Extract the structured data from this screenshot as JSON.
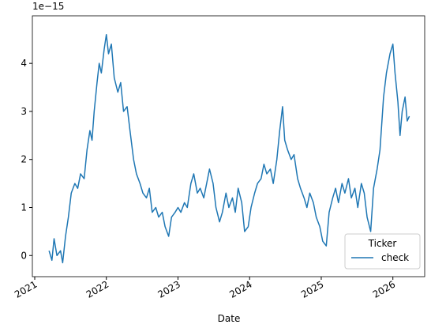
{
  "chart_data": {
    "type": "line",
    "y_offset_label": "1e−15",
    "x_label": "Date",
    "x": [
      2021.2,
      2021.24,
      2021.27,
      2021.31,
      2021.36,
      2021.39,
      2021.43,
      2021.47,
      2021.51,
      2021.56,
      2021.6,
      2021.64,
      2021.69,
      2021.73,
      2021.77,
      2021.8,
      2021.83,
      2021.87,
      2021.9,
      2021.93,
      2021.97,
      2022.0,
      2022.03,
      2022.07,
      2022.11,
      2022.16,
      2022.2,
      2022.24,
      2022.29,
      2022.33,
      2022.38,
      2022.42,
      2022.47,
      2022.51,
      2022.56,
      2022.6,
      2022.64,
      2022.69,
      2022.73,
      2022.78,
      2022.82,
      2022.87,
      2022.91,
      2022.96,
      2023.0,
      2023.04,
      2023.09,
      2023.13,
      2023.18,
      2023.22,
      2023.27,
      2023.31,
      2023.36,
      2023.4,
      2023.44,
      2023.49,
      2023.53,
      2023.58,
      2023.62,
      2023.67,
      2023.71,
      2023.76,
      2023.8,
      2023.84,
      2023.89,
      2023.93,
      2023.98,
      2024.02,
      2024.07,
      2024.11,
      2024.16,
      2024.2,
      2024.24,
      2024.29,
      2024.33,
      2024.38,
      2024.42,
      2024.46,
      2024.49,
      2024.53,
      2024.58,
      2024.62,
      2024.67,
      2024.71,
      2024.76,
      2024.8,
      2024.84,
      2024.89,
      2024.93,
      2024.98,
      2025.02,
      2025.07,
      2025.11,
      2025.16,
      2025.2,
      2025.24,
      2025.29,
      2025.33,
      2025.38,
      2025.42,
      2025.47,
      2025.51,
      2025.56,
      2025.6,
      2025.64,
      2025.69,
      2025.73,
      2025.78,
      2025.82,
      2025.87,
      2025.91,
      2025.96,
      2026.0,
      2026.03,
      2026.07,
      2026.1,
      2026.13,
      2026.17,
      2026.2,
      2026.23
    ],
    "series": [
      {
        "name": "check",
        "color": "#1f77b4",
        "values": [
          0.1,
          -0.1,
          0.35,
          0.0,
          0.1,
          -0.15,
          0.4,
          0.8,
          1.3,
          1.5,
          1.4,
          1.7,
          1.6,
          2.2,
          2.6,
          2.4,
          3.0,
          3.6,
          4.0,
          3.8,
          4.3,
          4.6,
          4.2,
          4.4,
          3.7,
          3.4,
          3.6,
          3.0,
          3.1,
          2.6,
          2.0,
          1.7,
          1.5,
          1.3,
          1.2,
          1.4,
          0.9,
          1.0,
          0.8,
          0.9,
          0.6,
          0.4,
          0.8,
          0.9,
          1.0,
          0.9,
          1.1,
          1.0,
          1.5,
          1.7,
          1.3,
          1.4,
          1.2,
          1.5,
          1.8,
          1.5,
          1.0,
          0.7,
          0.9,
          1.3,
          1.0,
          1.2,
          0.9,
          1.4,
          1.1,
          0.5,
          0.6,
          1.0,
          1.3,
          1.5,
          1.6,
          1.9,
          1.7,
          1.8,
          1.5,
          2.0,
          2.6,
          3.1,
          2.4,
          2.2,
          2.0,
          2.1,
          1.6,
          1.4,
          1.2,
          1.0,
          1.3,
          1.1,
          0.8,
          0.6,
          0.3,
          0.2,
          0.9,
          1.2,
          1.4,
          1.1,
          1.5,
          1.3,
          1.6,
          1.2,
          1.4,
          1.0,
          1.5,
          1.3,
          0.8,
          0.5,
          1.4,
          1.8,
          2.2,
          3.3,
          3.8,
          4.2,
          4.4,
          3.8,
          3.2,
          2.5,
          3.0,
          3.3,
          2.8,
          2.9
        ]
      }
    ],
    "xlim": [
      2020.967,
      2026.444
    ],
    "xticks": [
      2021,
      2022,
      2023,
      2024,
      2025,
      2026
    ],
    "ylim": [
      -0.44,
      4.99
    ],
    "yticks": [
      0,
      1,
      2,
      3,
      4
    ],
    "legend": {
      "title": "Ticker",
      "loc": "lower right"
    }
  }
}
